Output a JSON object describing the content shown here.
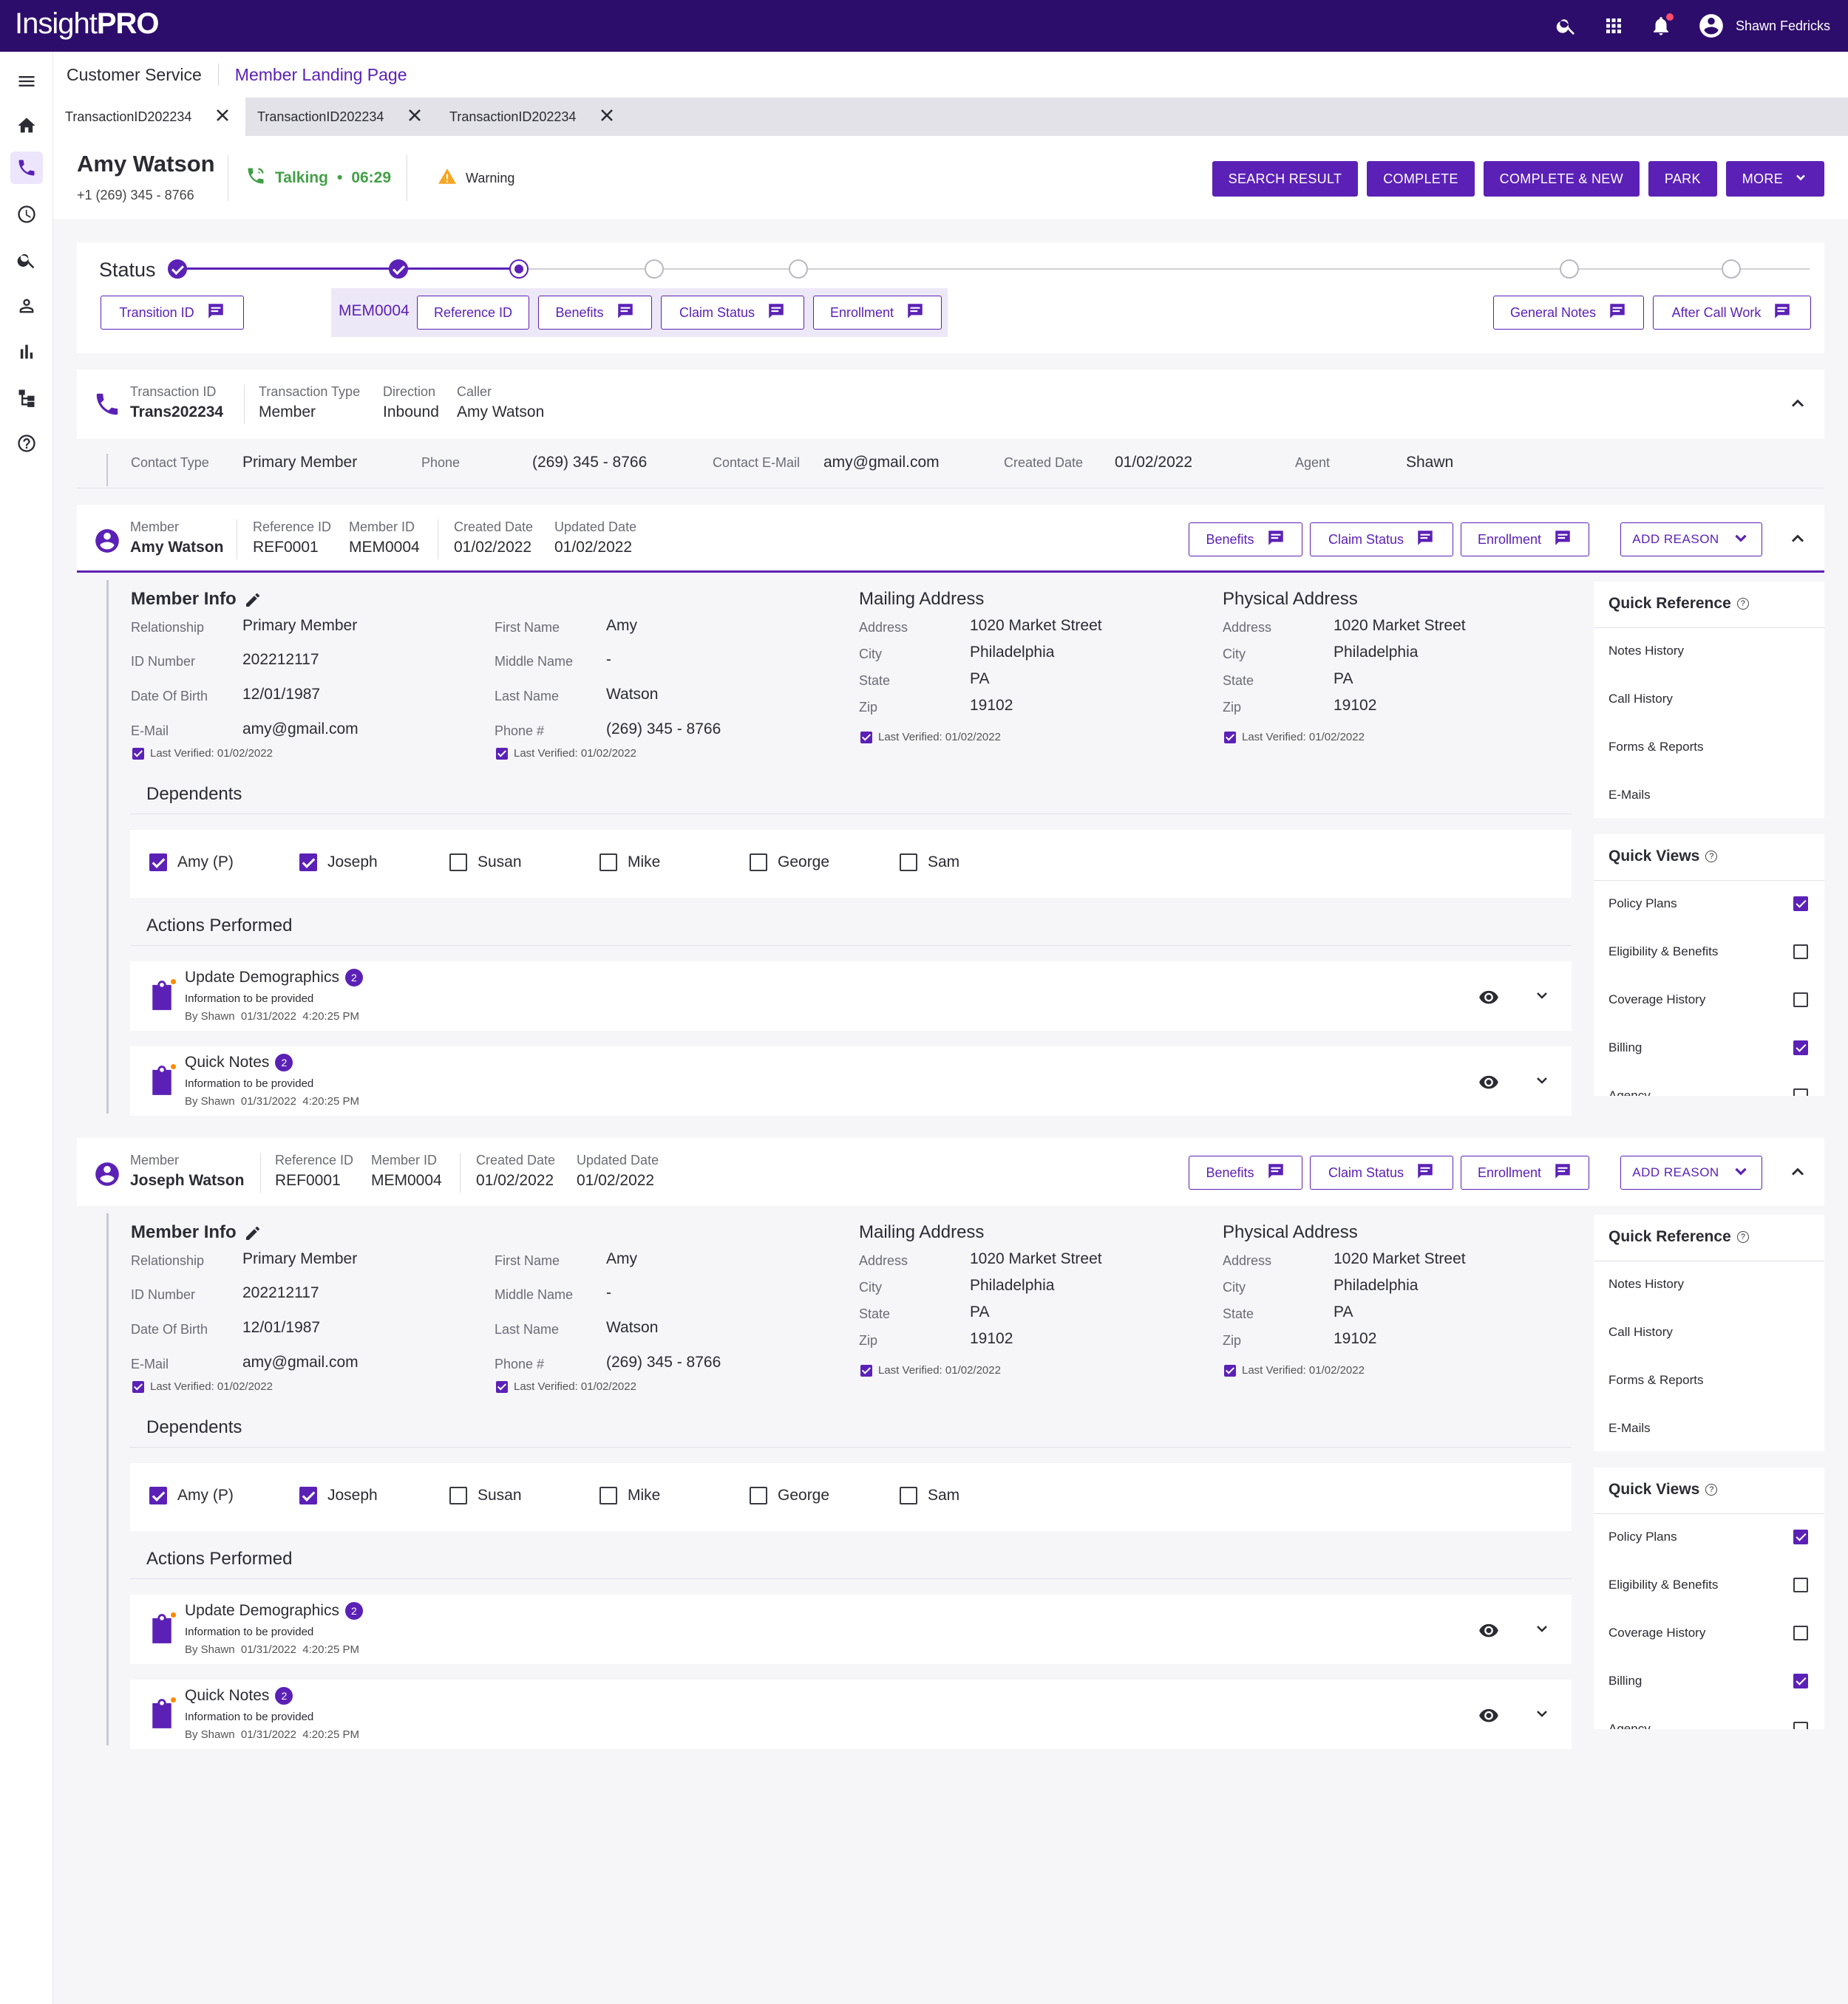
{
  "app": {
    "logo_light": "Insight",
    "logo_bold": "PRO",
    "user_name": "Shawn Fedricks"
  },
  "breadcrumb": {
    "section": "Customer Service",
    "page": "Member Landing Page"
  },
  "tabs": [
    "TransactionID202234",
    "TransactionID202234",
    "TransactionID202234"
  ],
  "call": {
    "name": "Amy Watson",
    "phone": "+1 (269) 345 - 8766",
    "state": "Talking",
    "dot": "•",
    "timer": "06:29",
    "warning": "Warning"
  },
  "header_actions": [
    "SEARCH RESULT",
    "COMPLETE",
    "COMPLETE & NEW",
    "PARK",
    "MORE"
  ],
  "status": {
    "title": "Status",
    "steps": [
      "done",
      "done",
      "current",
      "todo",
      "todo",
      "todo",
      "todo"
    ],
    "buttons": {
      "transition": "Transition ID",
      "mem_id": "MEM0004",
      "reference": "Reference ID",
      "benefits": "Benefits",
      "claim": "Claim Status",
      "enrollment": "Enrollment",
      "general_notes": "General Notes",
      "after_call": "After Call Work"
    }
  },
  "transaction": {
    "labels": {
      "tid": "Transaction ID",
      "ttype": "Transaction Type",
      "direction": "Direction",
      "caller": "Caller"
    },
    "values": {
      "tid": "Trans202234",
      "ttype": "Member",
      "direction": "Inbound",
      "caller": "Amy Watson"
    },
    "contact": {
      "contact_type_label": "Contact Type",
      "contact_type": "Primary Member",
      "phone_label": "Phone",
      "phone": "(269) 345 - 8766",
      "email_label": "Contact E-Mail",
      "email": "amy@gmail.com",
      "created_label": "Created Date",
      "created": "01/02/2022",
      "agent_label": "Agent",
      "agent": "Shawn"
    }
  },
  "members": [
    {
      "header": {
        "member_label": "Member",
        "member": "Amy Watson",
        "ref_label": "Reference ID",
        "ref": "REF0001",
        "mid_label": "Member ID",
        "mid": "MEM0004",
        "created_label": "Created Date",
        "created": "01/02/2022",
        "updated_label": "Updated Date",
        "updated": "01/02/2022"
      },
      "buttons": {
        "benefits": "Benefits",
        "claim": "Claim Status",
        "enrollment": "Enrollment",
        "add_reason": "ADD REASON"
      },
      "info": {
        "title": "Member Info",
        "relationship_label": "Relationship",
        "relationship": "Primary Member",
        "id_label": "ID Number",
        "id": "202212117",
        "dob_label": "Date Of Birth",
        "dob": "12/01/1987",
        "email_label": "E-Mail",
        "email": "amy@gmail.com",
        "first_label": "First Name",
        "first": "Amy",
        "middle_label": "Middle Name",
        "middle": "-",
        "last_label": "Last Name",
        "last": "Watson",
        "phone_label": "Phone #",
        "phone": "(269) 345 - 8766",
        "verified": "Last Verified: 01/02/2022"
      },
      "mailing": {
        "title": "Mailing Address",
        "address_label": "Address",
        "address": "1020 Market Street",
        "city_label": "City",
        "city": "Philadelphia",
        "state_label": "State",
        "state": "PA",
        "zip_label": "Zip",
        "zip": "19102",
        "verified": "Last Verified: 01/02/2022"
      },
      "physical": {
        "title": "Physical Address",
        "address_label": "Address",
        "address": "1020 Market Street",
        "city_label": "City",
        "city": "Philadelphia",
        "state_label": "State",
        "state": "PA",
        "zip_label": "Zip",
        "zip": "19102",
        "verified": "Last Verified: 01/02/2022"
      },
      "dependents_title": "Dependents",
      "dependents": [
        {
          "name": "Amy (P)",
          "checked": true
        },
        {
          "name": "Joseph",
          "checked": true
        },
        {
          "name": "Susan",
          "checked": false
        },
        {
          "name": "Mike",
          "checked": false
        },
        {
          "name": "George",
          "checked": false
        },
        {
          "name": "Sam",
          "checked": false
        }
      ],
      "actions_title": "Actions Performed",
      "actions": [
        {
          "title": "Update Demographics",
          "count": "2",
          "sub": "Information to be provided",
          "meta": "By Shawn  01/31/2022  4:20:25 PM"
        },
        {
          "title": "Quick Notes",
          "count": "2",
          "sub": "Information to be provided",
          "meta": "By Shawn  01/31/2022  4:20:25 PM"
        }
      ]
    },
    {
      "header": {
        "member_label": "Member",
        "member": "Joseph Watson",
        "ref_label": "Reference ID",
        "ref": "REF0001",
        "mid_label": "Member ID",
        "mid": "MEM0004",
        "created_label": "Created Date",
        "created": "01/02/2022",
        "updated_label": "Updated Date",
        "updated": "01/02/2022"
      },
      "buttons": {
        "benefits": "Benefits",
        "claim": "Claim Status",
        "enrollment": "Enrollment",
        "add_reason": "ADD REASON"
      },
      "info": {
        "title": "Member Info",
        "relationship_label": "Relationship",
        "relationship": "Primary Member",
        "id_label": "ID Number",
        "id": "202212117",
        "dob_label": "Date Of Birth",
        "dob": "12/01/1987",
        "email_label": "E-Mail",
        "email": "amy@gmail.com",
        "first_label": "First Name",
        "first": "Amy",
        "middle_label": "Middle Name",
        "middle": "-",
        "last_label": "Last Name",
        "last": "Watson",
        "phone_label": "Phone #",
        "phone": "(269) 345 - 8766",
        "verified": "Last Verified: 01/02/2022"
      },
      "mailing": {
        "title": "Mailing Address",
        "address_label": "Address",
        "address": "1020 Market Street",
        "city_label": "City",
        "city": "Philadelphia",
        "state_label": "State",
        "state": "PA",
        "zip_label": "Zip",
        "zip": "19102",
        "verified": "Last Verified: 01/02/2022"
      },
      "physical": {
        "title": "Physical Address",
        "address_label": "Address",
        "address": "1020 Market Street",
        "city_label": "City",
        "city": "Philadelphia",
        "state_label": "State",
        "state": "PA",
        "zip_label": "Zip",
        "zip": "19102",
        "verified": "Last Verified: 01/02/2022"
      },
      "dependents_title": "Dependents",
      "dependents": [
        {
          "name": "Amy (P)",
          "checked": true
        },
        {
          "name": "Joseph",
          "checked": true
        },
        {
          "name": "Susan",
          "checked": false
        },
        {
          "name": "Mike",
          "checked": false
        },
        {
          "name": "George",
          "checked": false
        },
        {
          "name": "Sam",
          "checked": false
        }
      ],
      "actions_title": "Actions Performed",
      "actions": [
        {
          "title": "Update Demographics",
          "count": "2",
          "sub": "Information to be provided",
          "meta": "By Shawn  01/31/2022  4:20:25 PM"
        },
        {
          "title": "Quick Notes",
          "count": "2",
          "sub": "Information to be provided",
          "meta": "By Shawn  01/31/2022  4:20:25 PM"
        }
      ]
    }
  ],
  "quick_reference": {
    "title": "Quick Reference",
    "help": "?",
    "items": [
      "Notes History",
      "Call History",
      "Forms & Reports",
      "E-Mails"
    ]
  },
  "quick_views": {
    "title": "Quick Views",
    "help": "?",
    "items": [
      {
        "label": "Policy Plans",
        "checked": true
      },
      {
        "label": "Eligibility & Benefits",
        "checked": false
      },
      {
        "label": "Coverage History",
        "checked": false
      },
      {
        "label": "Billing",
        "checked": true
      },
      {
        "label": "Agency",
        "checked": false
      }
    ]
  },
  "colors": {
    "brand": "#2d0d6b",
    "accent": "#5b21b6",
    "talking": "#43a047",
    "warning": "#f5a623"
  }
}
